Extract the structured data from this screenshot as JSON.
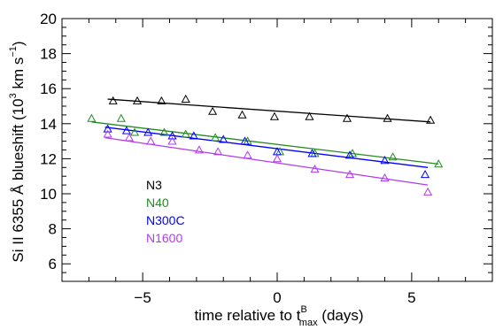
{
  "chart_data": {
    "type": "scatter",
    "xlabel_parts": {
      "main": "time relative to t",
      "sup": "B",
      "sub": "max",
      "tail": " (days)"
    },
    "ylabel_parts": {
      "main": "Si II 6355 Å blueshift (10",
      "sup": "3",
      "tail": " km s",
      "sup2": "−1",
      "close": ")"
    },
    "xlim": [
      -8,
      8
    ],
    "ylim": [
      5,
      20
    ],
    "xticks": [
      -5,
      0,
      5
    ],
    "xtick_labels": [
      "−5",
      "0",
      "5"
    ],
    "yticks": [
      6,
      8,
      10,
      12,
      14,
      16,
      18,
      20
    ],
    "ytick_labels": [
      "6",
      "8",
      "10",
      "12",
      "14",
      "16",
      "18",
      "20"
    ],
    "grid": false,
    "legend_position": "lower-left",
    "marker": "open-triangle",
    "series": [
      {
        "name": "N3",
        "color": "#000000",
        "points": [
          [
            -6.1,
            15.3
          ],
          [
            -5.2,
            15.3
          ],
          [
            -4.3,
            15.3
          ],
          [
            -3.4,
            15.4
          ],
          [
            -2.4,
            14.7
          ],
          [
            -1.3,
            14.5
          ],
          [
            -0.1,
            14.4
          ],
          [
            1.2,
            14.4
          ],
          [
            2.6,
            14.3
          ],
          [
            4.1,
            14.3
          ],
          [
            5.7,
            14.2
          ]
        ],
        "fit": [
          [
            -6.3,
            15.4
          ],
          [
            5.7,
            14.1
          ]
        ]
      },
      {
        "name": "N40",
        "color": "#228B22",
        "points": [
          [
            -6.9,
            14.3
          ],
          [
            -5.8,
            14.3
          ],
          [
            -5.3,
            13.5
          ],
          [
            -4.2,
            13.5
          ],
          [
            -3.4,
            13.4
          ],
          [
            -2.3,
            13.2
          ],
          [
            -1.1,
            13.0
          ],
          [
            0.1,
            12.4
          ],
          [
            1.4,
            12.3
          ],
          [
            2.8,
            12.3
          ],
          [
            4.3,
            12.1
          ],
          [
            6.0,
            11.7
          ]
        ],
        "fit": [
          [
            -6.9,
            14.1
          ],
          [
            6.0,
            11.7
          ]
        ]
      },
      {
        "name": "N300C",
        "color": "#0000FF",
        "points": [
          [
            -6.3,
            13.7
          ],
          [
            -5.6,
            13.6
          ],
          [
            -4.8,
            13.5
          ],
          [
            -3.9,
            13.3
          ],
          [
            -3.1,
            13.3
          ],
          [
            -2.0,
            13.1
          ],
          [
            -1.2,
            13.0
          ],
          [
            0.0,
            12.4
          ],
          [
            1.3,
            12.3
          ],
          [
            2.7,
            12.2
          ],
          [
            4.0,
            11.9
          ],
          [
            5.5,
            11.1
          ]
        ],
        "fit": [
          [
            -6.4,
            13.8
          ],
          [
            5.6,
            11.5
          ]
        ]
      },
      {
        "name": "N1600",
        "color": "#B23AEE",
        "points": [
          [
            -6.3,
            13.4
          ],
          [
            -5.5,
            13.2
          ],
          [
            -4.7,
            13.0
          ],
          [
            -3.9,
            13.0
          ],
          [
            -2.9,
            12.5
          ],
          [
            -2.2,
            12.4
          ],
          [
            -1.1,
            12.2
          ],
          [
            0.0,
            12.0
          ],
          [
            1.4,
            11.4
          ],
          [
            2.7,
            11.1
          ],
          [
            4.0,
            10.9
          ],
          [
            5.6,
            10.1
          ]
        ],
        "fit": [
          [
            -6.4,
            13.2
          ],
          [
            5.6,
            10.5
          ]
        ]
      }
    ]
  }
}
